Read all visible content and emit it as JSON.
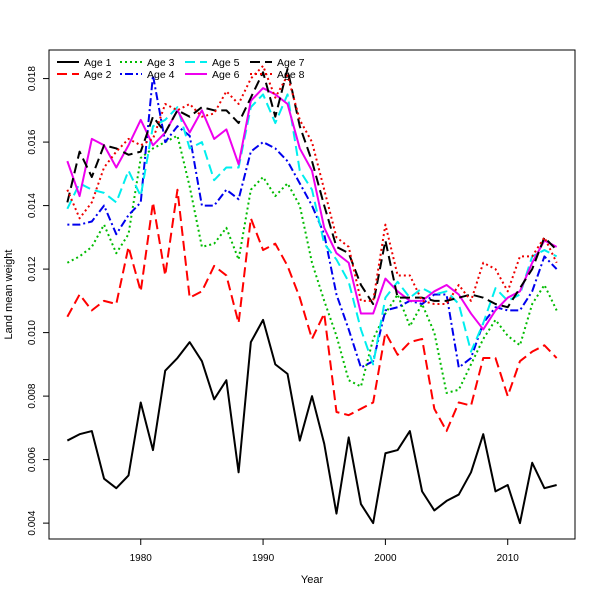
{
  "chart_data": {
    "type": "line",
    "xlabel": "Year",
    "ylabel": "Land mean weight",
    "xlim": [
      1972.5,
      2015.5
    ],
    "ylim": [
      0.0035,
      0.0189
    ],
    "x_ticks": [
      1980,
      1990,
      2000,
      2010
    ],
    "y_ticks": [
      0.004,
      0.006,
      0.008,
      0.01,
      0.012,
      0.014,
      0.016,
      0.018
    ],
    "y_tick_labels": [
      "0.004",
      "0.006",
      "0.008",
      "0.010",
      "0.012",
      "0.014",
      "0.016",
      "0.018"
    ],
    "grid": false,
    "legend_position": "top-left",
    "x": [
      1974,
      1975,
      1976,
      1977,
      1978,
      1979,
      1980,
      1981,
      1982,
      1983,
      1984,
      1985,
      1986,
      1987,
      1988,
      1989,
      1990,
      1991,
      1992,
      1993,
      1994,
      1995,
      1996,
      1997,
      1998,
      1999,
      2000,
      2001,
      2002,
      2003,
      2004,
      2005,
      2006,
      2007,
      2008,
      2009,
      2010,
      2011,
      2012,
      2013,
      2014
    ],
    "series": [
      {
        "name": "Age 1",
        "color": "#000000",
        "dash": "solid",
        "values": [
          0.0066,
          0.0068,
          0.0069,
          0.0054,
          0.0051,
          0.0055,
          0.0078,
          0.0063,
          0.0088,
          0.0092,
          0.0097,
          0.0091,
          0.0079,
          0.0085,
          0.0056,
          0.0097,
          0.0104,
          0.009,
          0.0087,
          0.0066,
          0.008,
          0.0065,
          0.0043,
          0.0067,
          0.0046,
          0.004,
          0.0062,
          0.0063,
          0.0069,
          0.005,
          0.0044,
          0.0047,
          0.0049,
          0.0056,
          0.0068,
          0.005,
          0.0052,
          0.004,
          0.0059,
          0.0051,
          0.0052
        ]
      },
      {
        "name": "Age 2",
        "color": "#ff0000",
        "dash": "longdash",
        "values": [
          0.0105,
          0.0112,
          0.0107,
          0.011,
          0.0109,
          0.0127,
          0.0113,
          0.0141,
          0.0118,
          0.0145,
          0.0111,
          0.0113,
          0.0121,
          0.0118,
          0.0103,
          0.0136,
          0.0126,
          0.0128,
          0.0121,
          0.0111,
          0.0098,
          0.0106,
          0.0075,
          0.0074,
          0.0076,
          0.0078,
          0.01,
          0.0093,
          0.0097,
          0.0098,
          0.0076,
          0.0069,
          0.0078,
          0.0077,
          0.0092,
          0.0092,
          0.008,
          0.0091,
          0.0094,
          0.0096,
          0.0092
        ]
      },
      {
        "name": "Age 3",
        "color": "#00bb00",
        "dash": "dotted",
        "values": [
          0.0122,
          0.0124,
          0.0127,
          0.0134,
          0.0125,
          0.0131,
          0.0155,
          0.0158,
          0.016,
          0.0162,
          0.0146,
          0.0127,
          0.0128,
          0.0133,
          0.0123,
          0.0145,
          0.0149,
          0.0143,
          0.0147,
          0.014,
          0.0122,
          0.011,
          0.0099,
          0.0085,
          0.0083,
          0.0098,
          0.0106,
          0.0112,
          0.0102,
          0.0109,
          0.01,
          0.0081,
          0.0082,
          0.009,
          0.0098,
          0.0104,
          0.0099,
          0.0096,
          0.0109,
          0.0115,
          0.0107
        ]
      },
      {
        "name": "Age 4",
        "color": "#0000ee",
        "dash": "dotdash",
        "values": [
          0.0134,
          0.0134,
          0.0135,
          0.014,
          0.0131,
          0.0137,
          0.0141,
          0.0181,
          0.016,
          0.0165,
          0.0162,
          0.014,
          0.014,
          0.0145,
          0.0142,
          0.0157,
          0.016,
          0.0158,
          0.0154,
          0.0147,
          0.014,
          0.0131,
          0.0112,
          0.0101,
          0.0089,
          0.0091,
          0.0107,
          0.0108,
          0.011,
          0.0109,
          0.0112,
          0.0112,
          0.0089,
          0.0092,
          0.0103,
          0.0108,
          0.0107,
          0.0107,
          0.0113,
          0.0124,
          0.012
        ]
      },
      {
        "name": "Age 5",
        "color": "#00eeee",
        "dash": "longdash",
        "values": [
          0.0139,
          0.0147,
          0.0145,
          0.0144,
          0.0141,
          0.0151,
          0.0143,
          0.0165,
          0.0167,
          0.0171,
          0.0158,
          0.016,
          0.0148,
          0.0152,
          0.0152,
          0.0171,
          0.0175,
          0.0166,
          0.0175,
          0.0151,
          0.0145,
          0.0128,
          0.0123,
          0.0116,
          0.0101,
          0.009,
          0.0111,
          0.0116,
          0.0111,
          0.0114,
          0.0112,
          0.0113,
          0.0109,
          0.0094,
          0.0103,
          0.0114,
          0.011,
          0.0112,
          0.0124,
          0.0126,
          0.0124
        ]
      },
      {
        "name": "Age 6",
        "color": "#ee00ee",
        "dash": "solid",
        "values": [
          0.0154,
          0.0143,
          0.0161,
          0.0159,
          0.0152,
          0.0159,
          0.0167,
          0.0159,
          0.0163,
          0.017,
          0.0163,
          0.017,
          0.0161,
          0.0164,
          0.0153,
          0.0173,
          0.0177,
          0.0175,
          0.0172,
          0.0158,
          0.0151,
          0.0133,
          0.0125,
          0.0122,
          0.0106,
          0.0106,
          0.0117,
          0.0113,
          0.011,
          0.011,
          0.0113,
          0.0115,
          0.0112,
          0.0106,
          0.0101,
          0.0107,
          0.0111,
          0.0113,
          0.0122,
          0.0129,
          0.0127
        ]
      },
      {
        "name": "Age 7",
        "color": "#000000",
        "dash": "longdash",
        "values": [
          0.0141,
          0.0157,
          0.0149,
          0.0159,
          0.0158,
          0.0156,
          0.0157,
          0.0168,
          0.0163,
          0.017,
          0.0168,
          0.0171,
          0.017,
          0.017,
          0.0166,
          0.0174,
          0.0182,
          0.0168,
          0.0183,
          0.0165,
          0.0154,
          0.014,
          0.0127,
          0.0125,
          0.0115,
          0.0109,
          0.0129,
          0.0111,
          0.0111,
          0.0111,
          0.011,
          0.011,
          0.0111,
          0.0112,
          0.0111,
          0.0109,
          0.0108,
          0.0114,
          0.012,
          0.013,
          0.0126
        ]
      },
      {
        "name": "Age 8",
        "color": "#ee0000",
        "dash": "dotted",
        "values": [
          0.0145,
          0.0136,
          0.0141,
          0.0152,
          0.0157,
          0.0161,
          0.0159,
          0.0161,
          0.0172,
          0.017,
          0.0172,
          0.0168,
          0.0169,
          0.0176,
          0.0172,
          0.018,
          0.0184,
          0.0174,
          0.0181,
          0.0167,
          0.016,
          0.0145,
          0.013,
          0.0127,
          0.011,
          0.011,
          0.0134,
          0.0118,
          0.0118,
          0.011,
          0.0109,
          0.0109,
          0.0115,
          0.011,
          0.0122,
          0.012,
          0.0113,
          0.0124,
          0.0124,
          0.013,
          0.0122
        ]
      }
    ]
  }
}
